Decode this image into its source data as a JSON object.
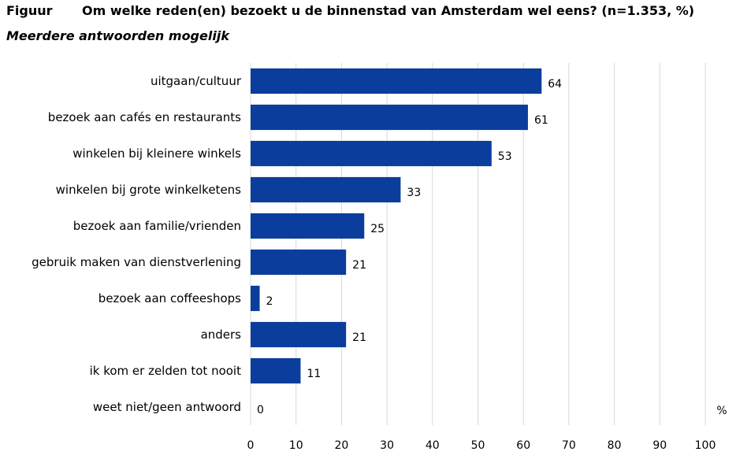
{
  "header": {
    "figure_label": "Figuur",
    "title": "Om welke reden(en) bezoekt u de binnenstad van Amsterdam wel eens? (n=1.353, %)",
    "subtitle": "Meerdere antwoorden mogelijk"
  },
  "chart_data": {
    "type": "bar",
    "orientation": "horizontal",
    "categories": [
      "uitgaan/cultuur",
      "bezoek aan cafés en restaurants",
      "winkelen bij kleinere winkels",
      "winkelen bij grote winkelketens",
      "bezoek aan familie/vrienden",
      "gebruik maken van dienstverlening",
      "bezoek aan coffeeshops",
      "anders",
      "ik kom er zelden tot nooit",
      "weet niet/geen antwoord"
    ],
    "values": [
      64,
      61,
      53,
      33,
      25,
      21,
      2,
      21,
      11,
      0
    ],
    "xlim": [
      0,
      100
    ],
    "xticks": [
      0,
      10,
      20,
      30,
      40,
      50,
      60,
      70,
      80,
      90,
      100
    ],
    "xunit": "%",
    "grid": true,
    "bar_color": "#0b3d9c",
    "grid_color": "#d9d9d9"
  }
}
